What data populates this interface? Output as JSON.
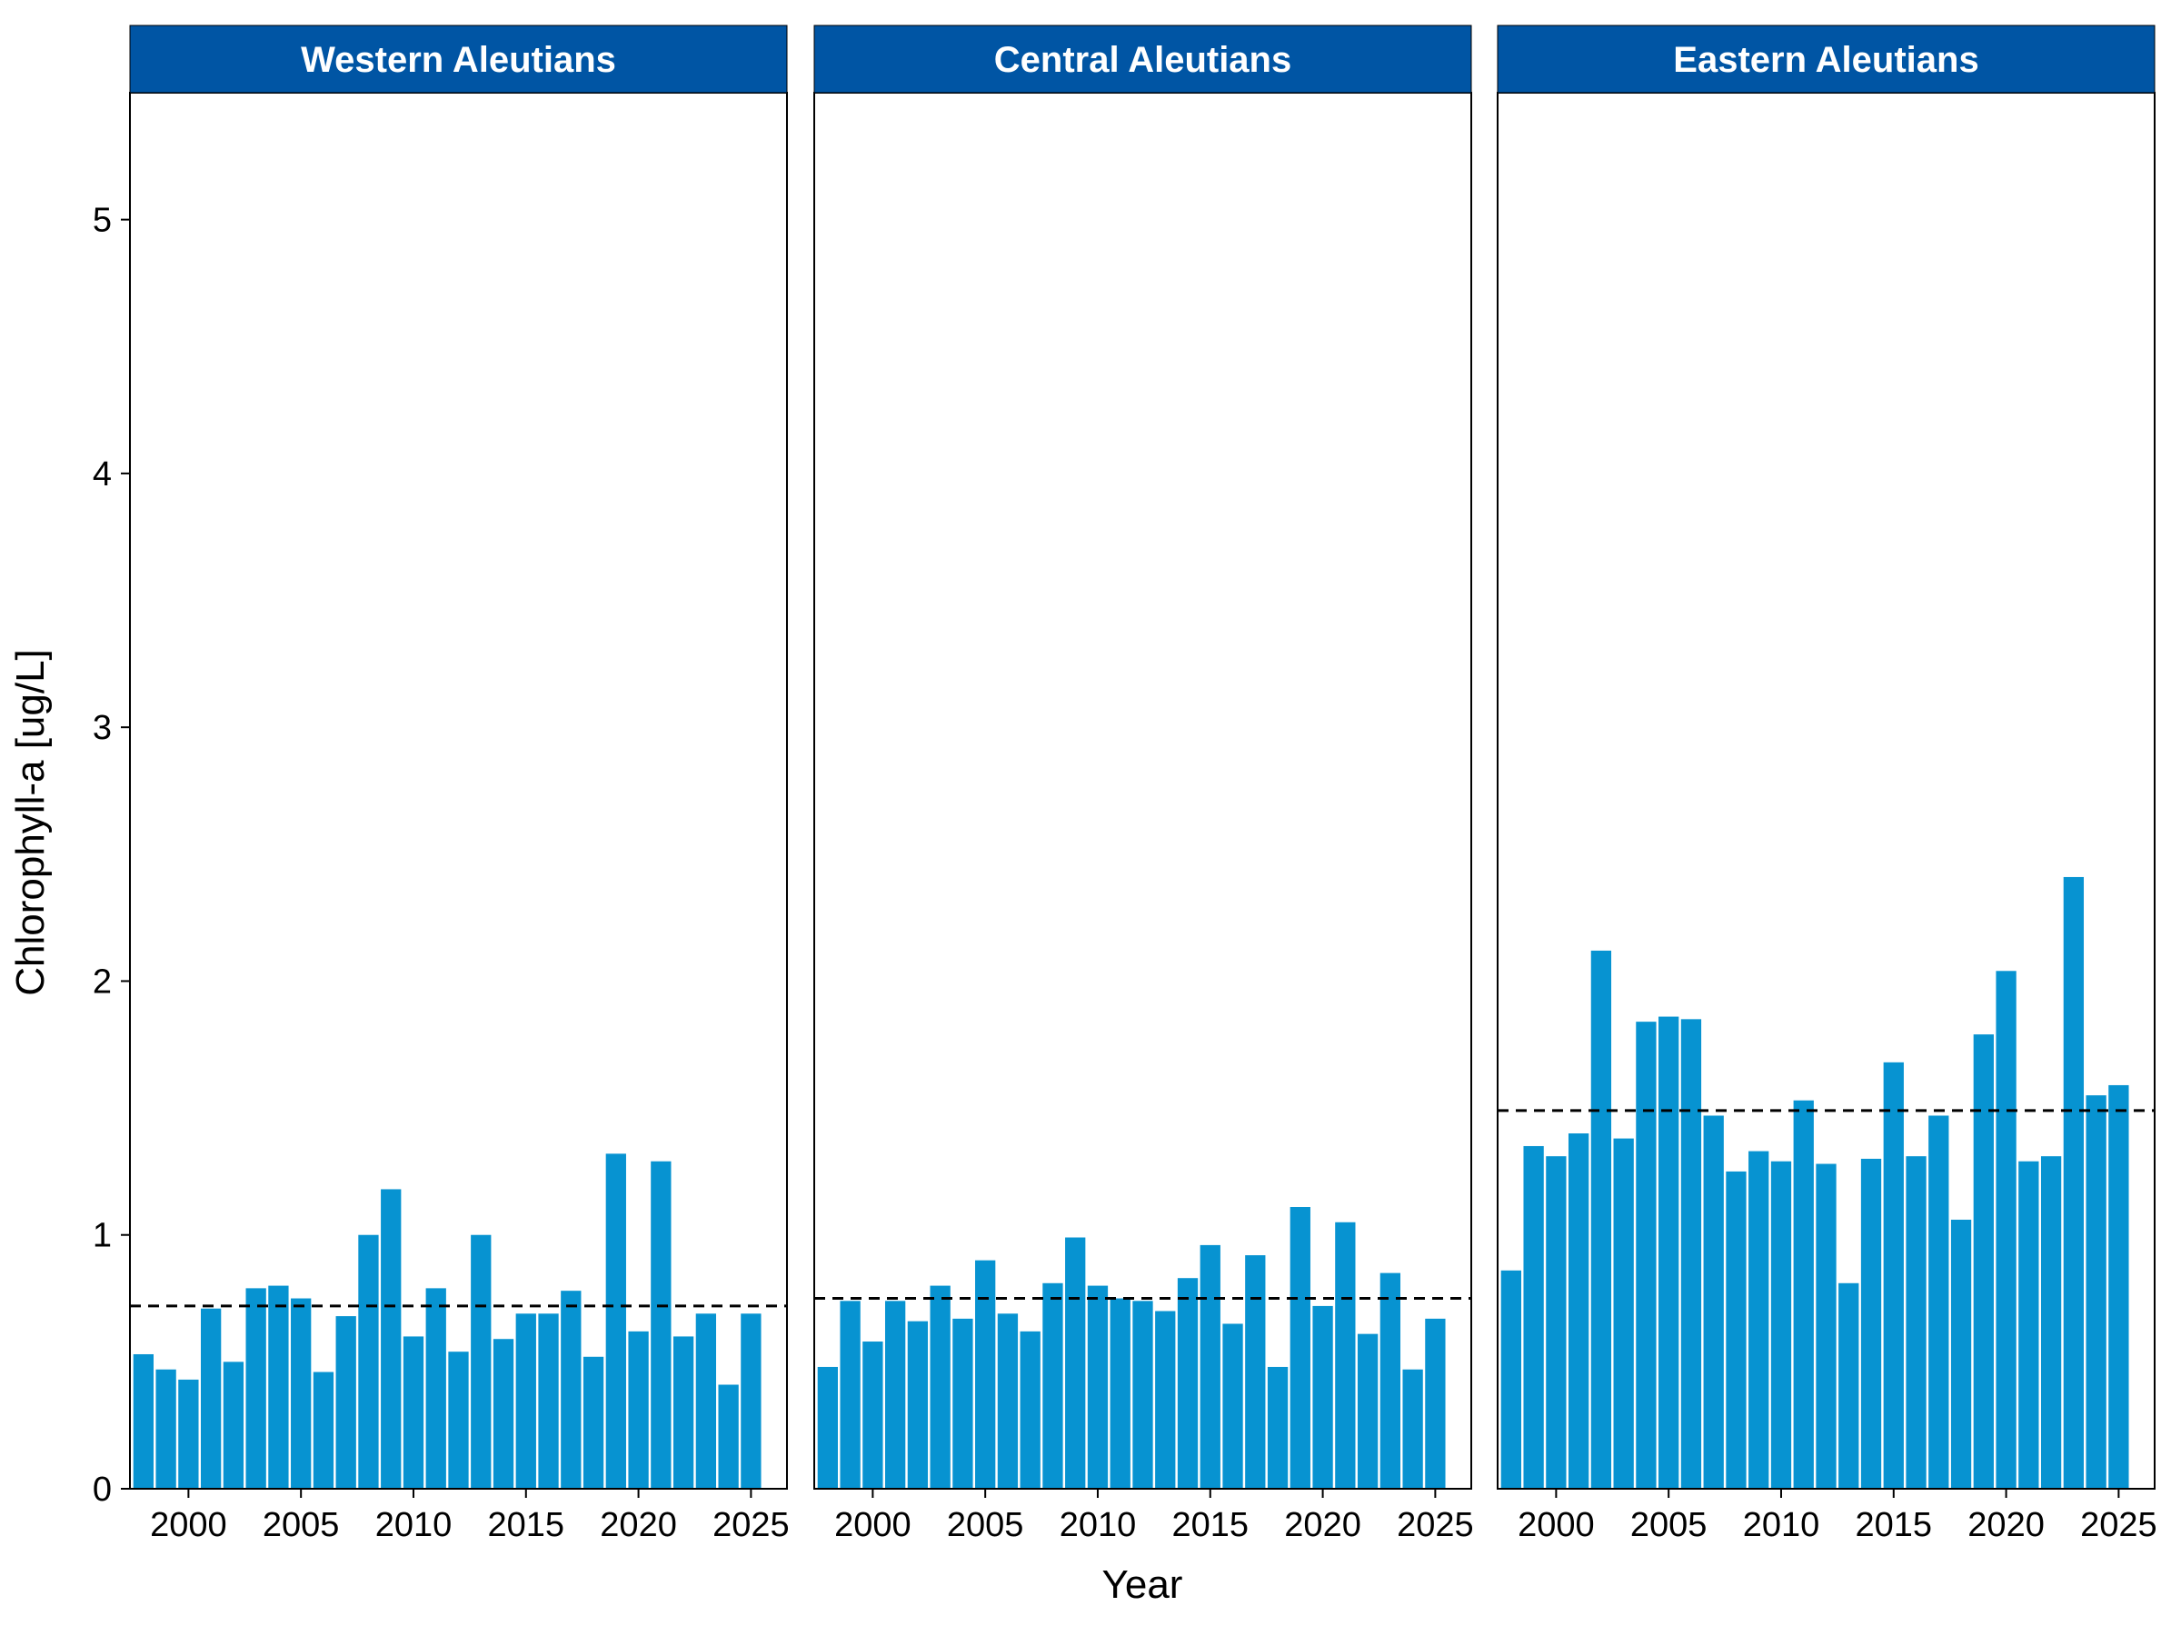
{
  "chart_data": {
    "type": "bar",
    "ylabel": "Chlorophyll-a [ug/L]",
    "xlabel": "Year",
    "ylim": [
      0,
      5.5
    ],
    "y_ticks": [
      "0",
      "1",
      "2",
      "3",
      "4",
      "5"
    ],
    "x_ticks": [
      "2000",
      "2005",
      "2010",
      "2015",
      "2020",
      "2025"
    ],
    "xlim": [
      1997.4,
      2026.6
    ],
    "bar_color": "#0793d1",
    "strip_color": "#0055a4",
    "mean_line_style": "dashed black",
    "panels": [
      {
        "title": "Western Aleutians",
        "mean": 0.72,
        "x": [
          1998,
          1999,
          2000,
          2001,
          2002,
          2003,
          2004,
          2005,
          2006,
          2007,
          2008,
          2009,
          2010,
          2011,
          2012,
          2013,
          2014,
          2015,
          2016,
          2017,
          2018,
          2019,
          2020,
          2021,
          2022,
          2023,
          2024,
          2025
        ],
        "values": [
          0.53,
          0.47,
          0.43,
          0.71,
          0.5,
          0.79,
          0.8,
          0.75,
          0.46,
          0.68,
          1.0,
          1.18,
          0.6,
          0.79,
          0.54,
          1.0,
          0.59,
          0.69,
          0.69,
          0.78,
          0.52,
          1.32,
          0.62,
          1.29,
          0.6,
          0.69,
          0.41,
          0.69
        ]
      },
      {
        "title": "Central Aleutians",
        "mean": 0.75,
        "x": [
          1998,
          1999,
          2000,
          2001,
          2002,
          2003,
          2004,
          2005,
          2006,
          2007,
          2008,
          2009,
          2010,
          2011,
          2012,
          2013,
          2014,
          2015,
          2016,
          2017,
          2018,
          2019,
          2020,
          2021,
          2022,
          2023,
          2024,
          2025
        ],
        "values": [
          0.48,
          0.74,
          0.58,
          0.74,
          0.66,
          0.8,
          0.67,
          0.9,
          0.69,
          0.62,
          0.81,
          0.99,
          0.8,
          0.75,
          0.74,
          0.7,
          0.83,
          0.96,
          0.65,
          0.92,
          0.48,
          1.11,
          0.72,
          1.05,
          0.61,
          0.85,
          0.47,
          0.67
        ]
      },
      {
        "title": "Eastern Aleutians",
        "mean": 1.49,
        "x": [
          1998,
          1999,
          2000,
          2001,
          2002,
          2003,
          2004,
          2005,
          2006,
          2007,
          2008,
          2009,
          2010,
          2011,
          2012,
          2013,
          2014,
          2015,
          2016,
          2017,
          2018,
          2019,
          2020,
          2021,
          2022,
          2023,
          2024,
          2025
        ],
        "values": [
          0.86,
          1.35,
          1.31,
          1.4,
          2.12,
          1.38,
          1.84,
          1.86,
          1.85,
          1.47,
          1.25,
          1.33,
          1.29,
          1.53,
          1.28,
          0.81,
          1.3,
          1.68,
          1.31,
          1.47,
          1.06,
          1.79,
          2.04,
          1.29,
          1.31,
          2.41,
          1.55,
          1.59
        ]
      }
    ]
  }
}
